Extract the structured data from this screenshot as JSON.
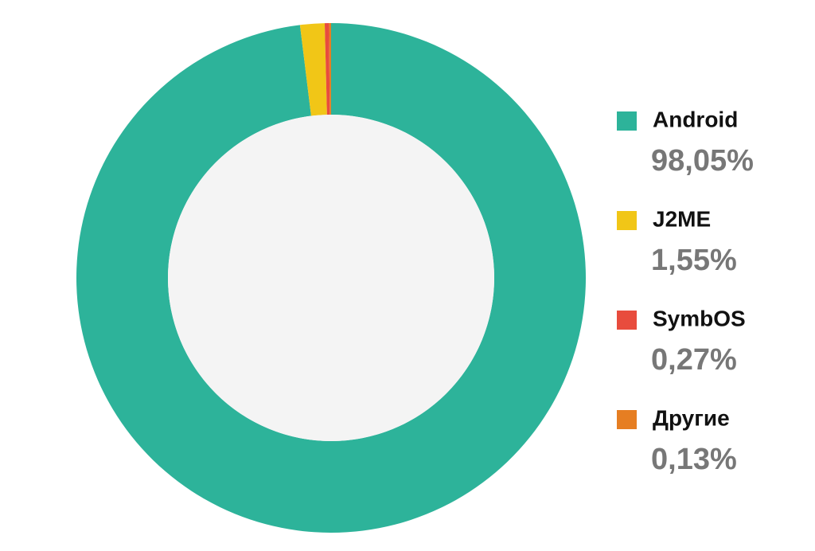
{
  "chart_data": {
    "type": "donut",
    "categories": [
      "Android",
      "J2ME",
      "SymbOS",
      "Другие"
    ],
    "values": [
      98.05,
      1.55,
      0.27,
      0.13
    ],
    "value_labels": [
      "98,05%",
      "1,55%",
      "0,27%",
      "0,13%"
    ],
    "colors": [
      "#2db39a",
      "#f1c617",
      "#e84c3d",
      "#e67e22"
    ],
    "legend": "right"
  }
}
